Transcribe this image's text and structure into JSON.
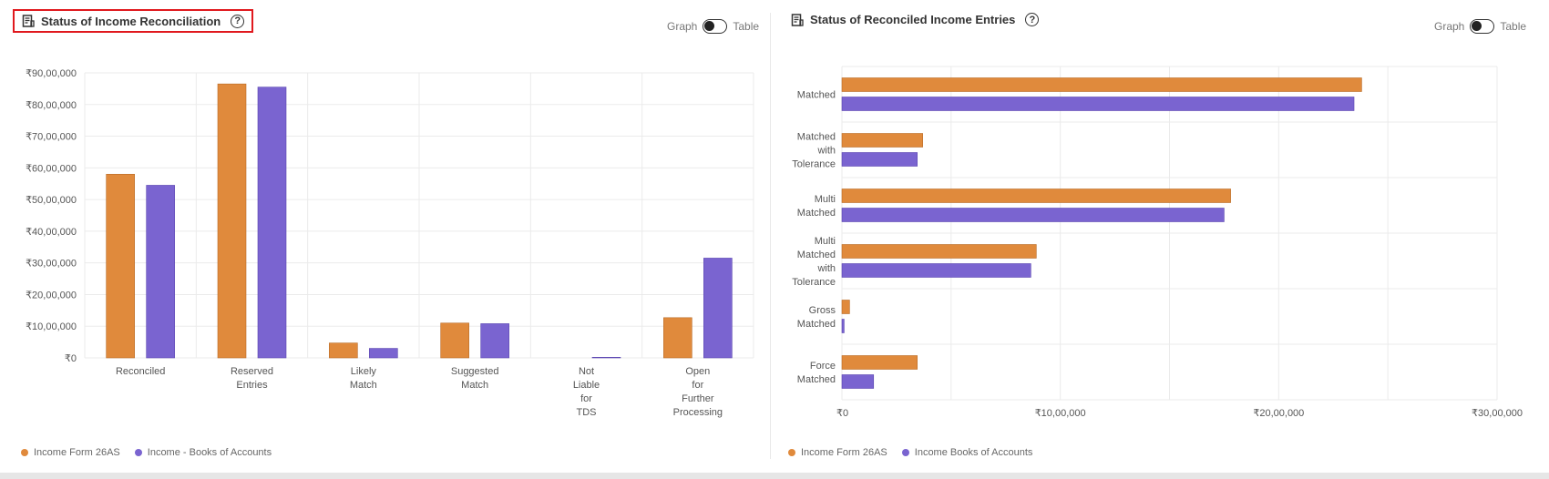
{
  "colors": {
    "series1": "#e08a3c",
    "series2": "#7a64d0",
    "grid": "#ebebeb",
    "axis_text": "#555555"
  },
  "left": {
    "title": "Status of Income Reconciliation",
    "help_symbol": "?",
    "toggle": {
      "left_label": "Graph",
      "right_label": "Table"
    },
    "legend": [
      "Income Form 26AS",
      "Income - Books of Accounts"
    ]
  },
  "right": {
    "title": "Status of Reconciled Income Entries",
    "help_symbol": "?",
    "toggle": {
      "left_label": "Graph",
      "right_label": "Table"
    },
    "legend": [
      "Income Form 26AS",
      "Income Books of Accounts"
    ]
  },
  "chart_data": [
    {
      "type": "bar",
      "orientation": "vertical",
      "title": "Status of Income Reconciliation",
      "categories": [
        [
          "Reconciled"
        ],
        [
          "Reserved",
          "Entries"
        ],
        [
          "Likely",
          "Match"
        ],
        [
          "Suggested",
          "Match"
        ],
        [
          "Not",
          "Liable",
          "for",
          "TDS"
        ],
        [
          "Open",
          "for",
          "Further",
          "Processing"
        ]
      ],
      "series": [
        {
          "name": "Income Form 26AS",
          "values": [
            5800000,
            8650000,
            470000,
            1100000,
            0,
            1270000
          ]
        },
        {
          "name": "Income - Books of Accounts",
          "values": [
            5450000,
            8550000,
            300000,
            1080000,
            20000,
            3150000
          ]
        }
      ],
      "ylim": [
        0,
        9000000
      ],
      "yticks": [
        0,
        1000000,
        2000000,
        3000000,
        4000000,
        5000000,
        6000000,
        7000000,
        8000000,
        9000000
      ],
      "ytick_labels": [
        "₹0",
        "₹10,00,000",
        "₹20,00,000",
        "₹30,00,000",
        "₹40,00,000",
        "₹50,00,000",
        "₹60,00,000",
        "₹70,00,000",
        "₹80,00,000",
        "₹90,00,000"
      ],
      "grid": true,
      "legend_position": "bottom-left"
    },
    {
      "type": "bar",
      "orientation": "horizontal",
      "title": "Status of Reconciled Income Entries",
      "categories": [
        [
          "Matched"
        ],
        [
          "Matched",
          "with",
          "Tolerance"
        ],
        [
          "Multi",
          "Matched"
        ],
        [
          "Multi",
          "Matched",
          "with",
          "Tolerance"
        ],
        [
          "Gross",
          "Matched"
        ],
        [
          "Force",
          "Matched"
        ]
      ],
      "series": [
        {
          "name": "Income Form 26AS",
          "values": [
            2380000,
            370000,
            1780000,
            890000,
            35000,
            345000
          ]
        },
        {
          "name": "Income Books of Accounts",
          "values": [
            2345000,
            345000,
            1750000,
            865000,
            10000,
            145000
          ]
        }
      ],
      "xlim": [
        0,
        3000000
      ],
      "xticks": [
        0,
        1000000,
        2000000,
        3000000
      ],
      "xtick_labels": [
        "₹0",
        "₹10,00,000",
        "₹20,00,000",
        "₹30,00,000"
      ],
      "grid": true,
      "legend_position": "bottom-left"
    }
  ]
}
